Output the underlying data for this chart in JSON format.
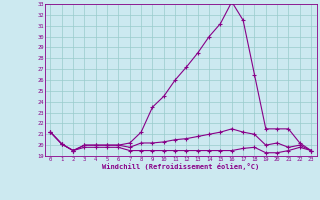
{
  "xlabel": "Windchill (Refroidissement éolien,°C)",
  "background_color": "#cce9f0",
  "line_color": "#880088",
  "grid_color": "#99cccc",
  "xlim": [
    -0.5,
    23.5
  ],
  "ylim": [
    19,
    33
  ],
  "yticks": [
    19,
    20,
    21,
    22,
    23,
    24,
    25,
    26,
    27,
    28,
    29,
    30,
    31,
    32,
    33
  ],
  "xticks": [
    0,
    1,
    2,
    3,
    4,
    5,
    6,
    7,
    8,
    9,
    10,
    11,
    12,
    13,
    14,
    15,
    16,
    17,
    18,
    19,
    20,
    21,
    22,
    23
  ],
  "series": [
    [
      21.2,
      20.1,
      19.5,
      20.0,
      20.0,
      20.0,
      20.0,
      20.2,
      21.2,
      23.5,
      24.5,
      26.0,
      27.2,
      28.5,
      30.0,
      31.2,
      33.2,
      31.5,
      26.5,
      21.5,
      21.5,
      21.5,
      20.2,
      19.5
    ],
    [
      21.2,
      20.1,
      19.5,
      20.0,
      20.0,
      20.0,
      20.0,
      19.8,
      20.2,
      20.2,
      20.3,
      20.5,
      20.6,
      20.8,
      21.0,
      21.2,
      21.5,
      21.2,
      21.0,
      20.0,
      20.2,
      19.8,
      20.0,
      19.5
    ],
    [
      21.2,
      20.1,
      19.5,
      19.8,
      19.8,
      19.8,
      19.8,
      19.5,
      19.5,
      19.5,
      19.5,
      19.5,
      19.5,
      19.5,
      19.5,
      19.5,
      19.5,
      19.7,
      19.8,
      19.3,
      19.3,
      19.5,
      19.8,
      19.5
    ]
  ]
}
